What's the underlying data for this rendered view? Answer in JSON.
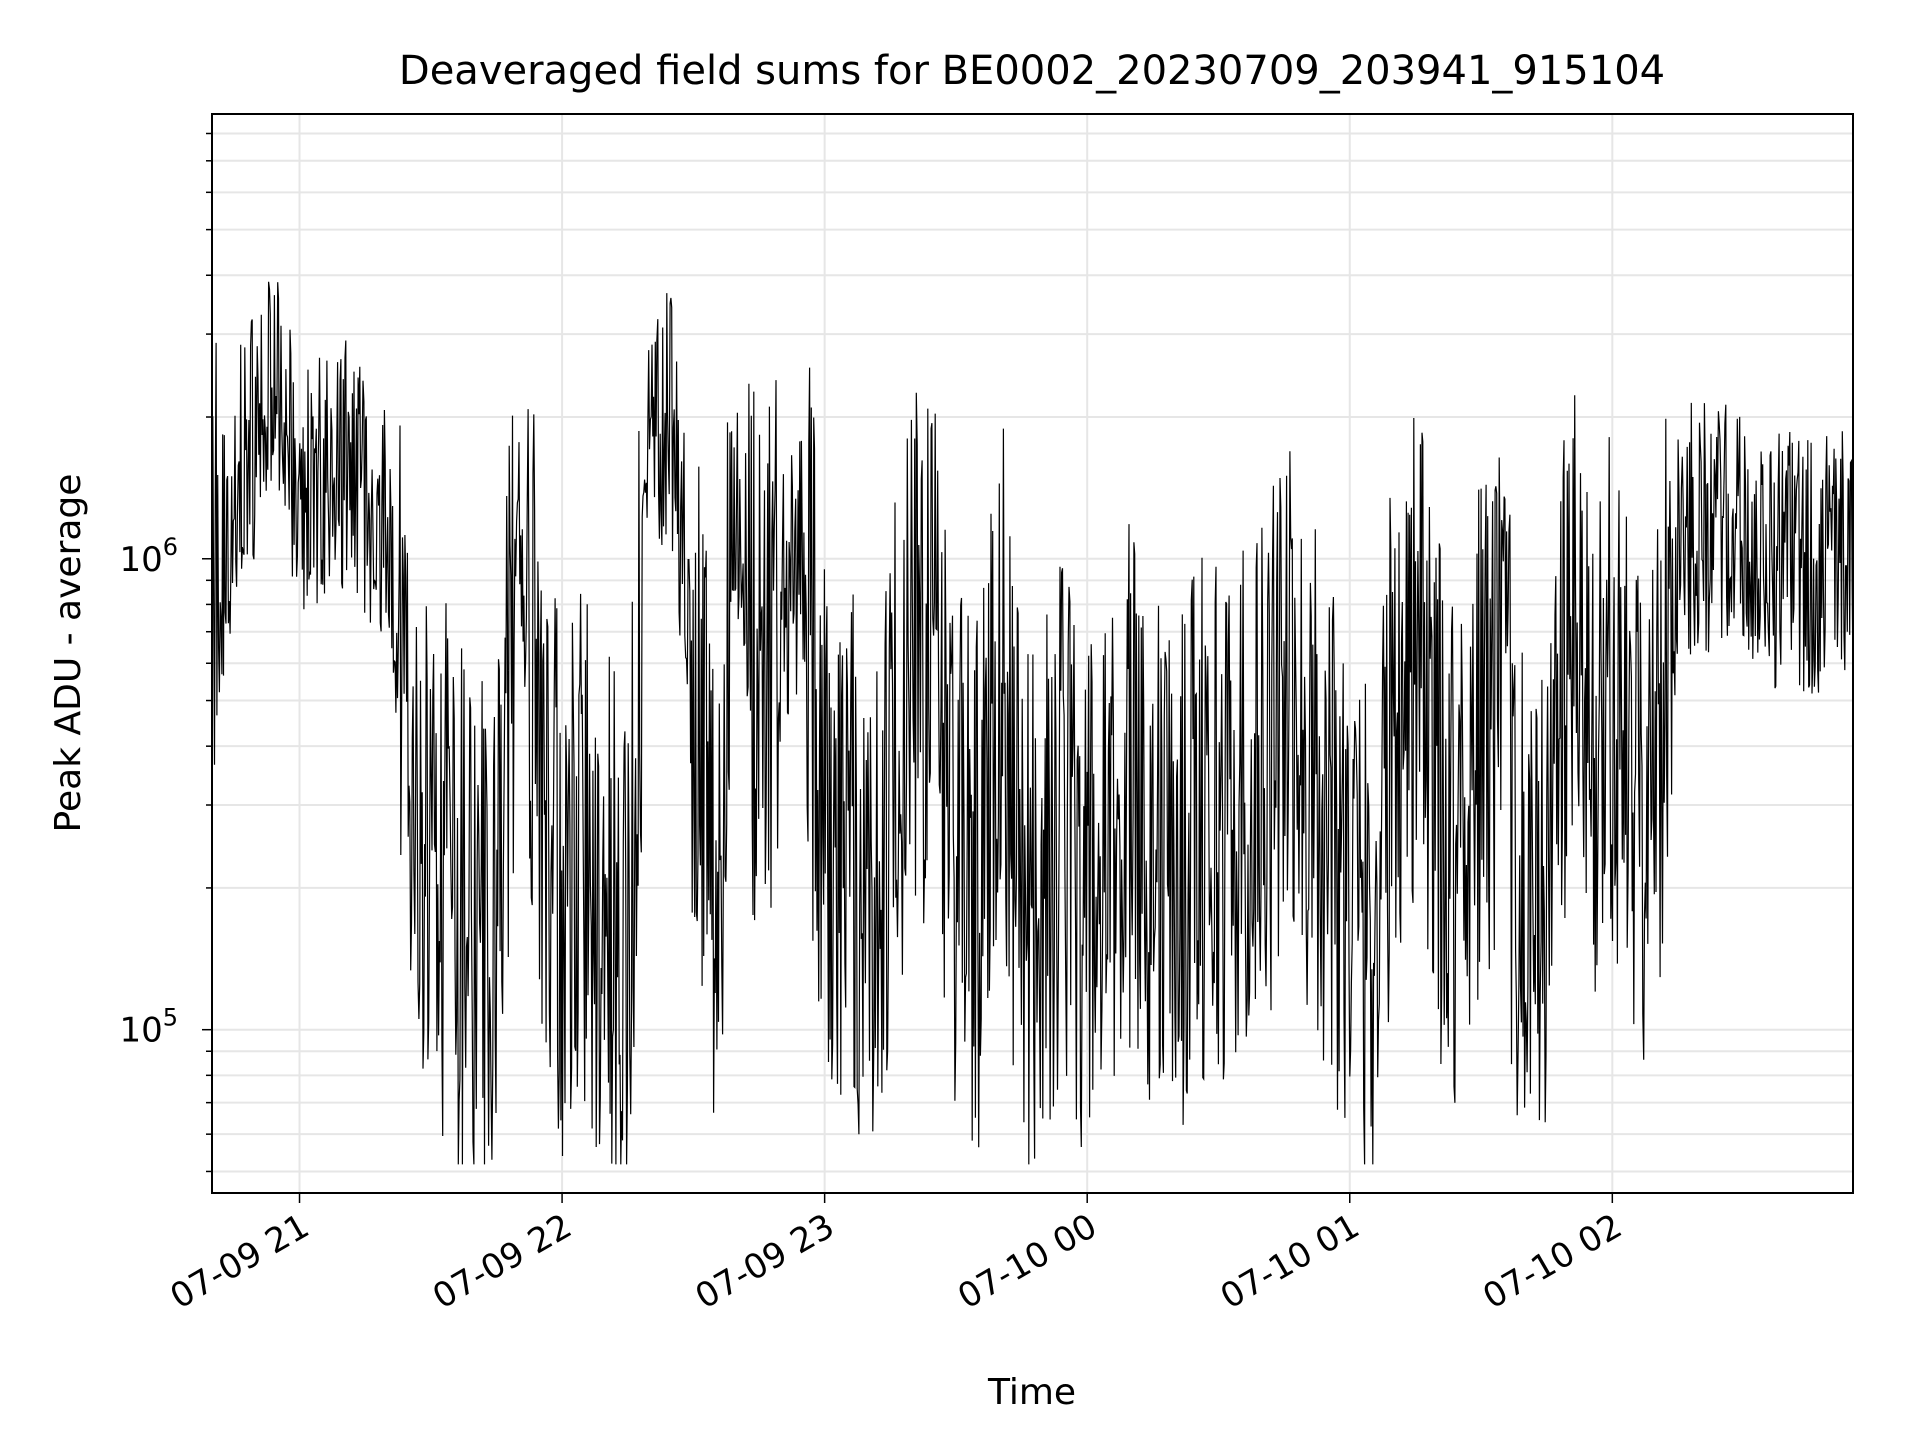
{
  "chart_data": {
    "type": "line",
    "title": "Deaveraged field sums for BE0002_20230709_203941_915104",
    "xlabel": "Time",
    "ylabel": "Peak ADU - average",
    "yscale": "log",
    "ylim": [
      45000,
      8800000
    ],
    "xlim": [
      "2023-07-09 20:40",
      "2023-07-10 02:55"
    ],
    "grid": true,
    "line_color": "#000000",
    "y_ticks": [
      {
        "value": 100000,
        "base": "10",
        "exp": "5"
      },
      {
        "value": 1000000,
        "base": "10",
        "exp": "6"
      }
    ],
    "x_ticks": [
      {
        "value": "2023-07-09 21:00",
        "label": "07-09 21"
      },
      {
        "value": "2023-07-09 22:00",
        "label": "07-09 22"
      },
      {
        "value": "2023-07-09 23:00",
        "label": "07-09 23"
      },
      {
        "value": "2023-07-10 00:00",
        "label": "07-10 00"
      },
      {
        "value": "2023-07-10 01:00",
        "label": "07-10 01"
      },
      {
        "value": "2023-07-10 02:00",
        "label": "07-10 02"
      }
    ],
    "series": [
      {
        "x": [
          "2023-07-09 20:40",
          "2023-07-09 20:45",
          "2023-07-09 20:50",
          "2023-07-09 20:55",
          "2023-07-09 21:00",
          "2023-07-09 21:05",
          "2023-07-09 21:10",
          "2023-07-09 21:15",
          "2023-07-09 21:20",
          "2023-07-09 21:25",
          "2023-07-09 21:30",
          "2023-07-09 21:35",
          "2023-07-09 21:40",
          "2023-07-09 21:45",
          "2023-07-09 21:50",
          "2023-07-09 21:55",
          "2023-07-09 22:00",
          "2023-07-09 22:05",
          "2023-07-09 22:10",
          "2023-07-09 22:15",
          "2023-07-09 22:20",
          "2023-07-09 22:25",
          "2023-07-09 22:30",
          "2023-07-09 22:35",
          "2023-07-09 22:40",
          "2023-07-09 22:45",
          "2023-07-09 22:50",
          "2023-07-09 22:55",
          "2023-07-09 23:00",
          "2023-07-09 23:05",
          "2023-07-09 23:10",
          "2023-07-09 23:15",
          "2023-07-09 23:20",
          "2023-07-09 23:25",
          "2023-07-09 23:30",
          "2023-07-09 23:35",
          "2023-07-09 23:40",
          "2023-07-09 23:45",
          "2023-07-09 23:50",
          "2023-07-09 23:55",
          "2023-07-10 00:00",
          "2023-07-10 00:05",
          "2023-07-10 00:10",
          "2023-07-10 00:15",
          "2023-07-10 00:20",
          "2023-07-10 00:25",
          "2023-07-10 00:30",
          "2023-07-10 00:35",
          "2023-07-10 00:40",
          "2023-07-10 00:45",
          "2023-07-10 00:50",
          "2023-07-10 00:55",
          "2023-07-10 01:00",
          "2023-07-10 01:05",
          "2023-07-10 01:10",
          "2023-07-10 01:15",
          "2023-07-10 01:20",
          "2023-07-10 01:25",
          "2023-07-10 01:30",
          "2023-07-10 01:35",
          "2023-07-10 01:40",
          "2023-07-10 01:45",
          "2023-07-10 01:50",
          "2023-07-10 01:55",
          "2023-07-10 02:00",
          "2023-07-10 02:05",
          "2023-07-10 02:10",
          "2023-07-10 02:15",
          "2023-07-10 02:20",
          "2023-07-10 02:25",
          "2023-07-10 02:30",
          "2023-07-10 02:35",
          "2023-07-10 02:40",
          "2023-07-10 02:45",
          "2023-07-10 02:50",
          "2023-07-10 02:55"
        ],
        "y": [
          700000,
          1400000,
          1800000,
          2400000,
          1300000,
          1500000,
          1600000,
          1400000,
          1200000,
          300000,
          250000,
          200000,
          150000,
          180000,
          1200000,
          400000,
          200000,
          250000,
          180000,
          150000,
          1800000,
          2000000,
          600000,
          180000,
          1300000,
          500000,
          800000,
          1000000,
          300000,
          250000,
          200000,
          300000,
          650000,
          600000,
          250000,
          200000,
          700000,
          180000,
          200000,
          300000,
          180000,
          200000,
          350000,
          250000,
          200000,
          300000,
          280000,
          300000,
          350000,
          500000,
          400000,
          300000,
          200000,
          150000,
          450000,
          700000,
          300000,
          250000,
          450000,
          500000,
          150000,
          200000,
          700000,
          400000,
          500000,
          300000,
          350000,
          1100000,
          1200000,
          1150000,
          1050000,
          1000000,
          1000000,
          950000,
          1000000,
          1000000
        ]
      }
    ]
  }
}
